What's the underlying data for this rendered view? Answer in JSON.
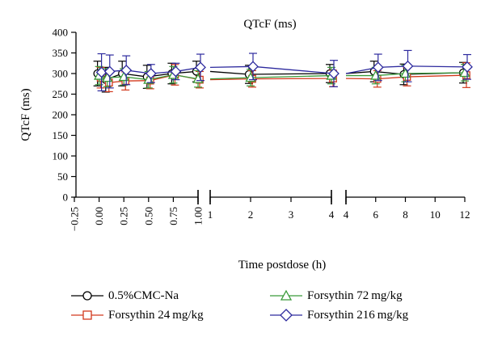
{
  "chart_data": {
    "type": "line",
    "title": "QTcF (ms)",
    "xlabel": "Time postdose (h)",
    "ylabel": "QTcF (ms)",
    "ylim": [
      0,
      400
    ],
    "yticks": [
      "0",
      "50",
      "100",
      "150",
      "200",
      "250",
      "300",
      "350",
      "400"
    ],
    "grid": false,
    "legend_position": "bottom",
    "segments": [
      {
        "x_range": [
          -0.25,
          1.0
        ],
        "ticks": [
          "−0.25",
          "0.00",
          "0.25",
          "0.50",
          "0.75",
          "1.00"
        ],
        "tick_values": [
          -0.25,
          0,
          0.25,
          0.5,
          0.75,
          1.0
        ],
        "tick_rotation": "vertical"
      },
      {
        "x_range": [
          1,
          4
        ],
        "ticks": [
          "1",
          "2",
          "3",
          "4"
        ],
        "tick_values": [
          1,
          2,
          3,
          4
        ],
        "tick_rotation": "horizontal"
      },
      {
        "x_range": [
          4,
          12
        ],
        "ticks": [
          "4",
          "6",
          "8",
          "10",
          "12"
        ],
        "tick_values": [
          4,
          6,
          8,
          10,
          12
        ],
        "tick_rotation": "horizontal"
      }
    ],
    "x": [
      0,
      0.083,
      0.25,
      0.5,
      0.75,
      1,
      2,
      4,
      6,
      8,
      12
    ],
    "series": [
      {
        "name": "0.5%CMC-Na",
        "color": "#000000",
        "marker": "circle",
        "values": [
          300,
          285,
          300,
          292,
          300,
          305,
          298,
          300,
          305,
          298,
          302
        ],
        "errors": [
          30,
          30,
          30,
          28,
          25,
          25,
          22,
          22,
          25,
          25,
          25
        ]
      },
      {
        "name": "Forsythin 24 mg/kg",
        "color": "#d2391d",
        "marker": "square",
        "values": [
          290,
          278,
          282,
          283,
          297,
          285,
          287,
          288,
          287,
          292,
          296
        ],
        "errors": [
          25,
          22,
          22,
          20,
          25,
          20,
          20,
          20,
          20,
          22,
          30
        ]
      },
      {
        "name": "Forsythin 72 mg/kg",
        "color": "#3a9a3a",
        "marker": "triangle",
        "values": [
          295,
          290,
          292,
          285,
          297,
          287,
          290,
          295,
          295,
          300,
          302
        ],
        "errors": [
          22,
          22,
          20,
          20,
          20,
          20,
          20,
          20,
          20,
          20,
          20
        ]
      },
      {
        "name": "Forsythin 216 mg/kg",
        "color": "#2d2a9e",
        "marker": "diamond",
        "values": [
          303,
          305,
          308,
          300,
          305,
          315,
          317,
          300,
          315,
          318,
          316
        ],
        "errors": [
          45,
          40,
          35,
          22,
          20,
          32,
          32,
          32,
          32,
          38,
          30
        ]
      }
    ]
  }
}
